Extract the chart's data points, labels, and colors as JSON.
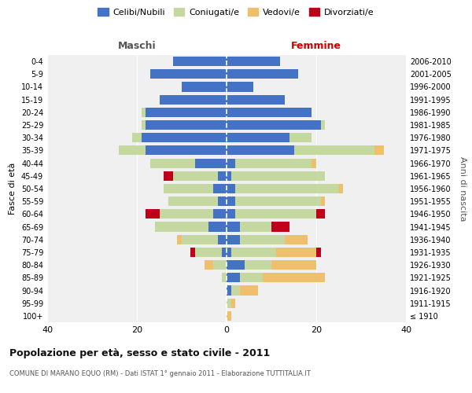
{
  "age_groups": [
    "100+",
    "95-99",
    "90-94",
    "85-89",
    "80-84",
    "75-79",
    "70-74",
    "65-69",
    "60-64",
    "55-59",
    "50-54",
    "45-49",
    "40-44",
    "35-39",
    "30-34",
    "25-29",
    "20-24",
    "15-19",
    "10-14",
    "5-9",
    "0-4"
  ],
  "birth_years": [
    "≤ 1910",
    "1911-1915",
    "1916-1920",
    "1921-1925",
    "1926-1930",
    "1931-1935",
    "1936-1940",
    "1941-1945",
    "1946-1950",
    "1951-1955",
    "1956-1960",
    "1961-1965",
    "1966-1970",
    "1971-1975",
    "1976-1980",
    "1981-1985",
    "1986-1990",
    "1991-1995",
    "1996-2000",
    "2001-2005",
    "2006-2010"
  ],
  "colors": {
    "celibi": "#4472c4",
    "coniugati": "#c5d8a0",
    "vedovi": "#f0bf6c",
    "divorziati": "#c0001a"
  },
  "maschi": {
    "celibi": [
      0,
      0,
      0,
      0,
      0,
      1,
      2,
      4,
      3,
      2,
      3,
      2,
      7,
      18,
      19,
      18,
      18,
      15,
      10,
      17,
      12
    ],
    "coniugati": [
      0,
      0,
      0,
      1,
      3,
      6,
      8,
      12,
      12,
      11,
      11,
      10,
      10,
      6,
      2,
      1,
      1,
      0,
      0,
      0,
      0
    ],
    "vedovi": [
      0,
      0,
      0,
      0,
      2,
      0,
      1,
      0,
      0,
      0,
      0,
      0,
      0,
      0,
      0,
      0,
      0,
      0,
      0,
      0,
      0
    ],
    "divorziati": [
      0,
      0,
      0,
      0,
      0,
      1,
      0,
      0,
      3,
      0,
      0,
      2,
      0,
      0,
      0,
      0,
      0,
      0,
      0,
      0,
      0
    ]
  },
  "femmine": {
    "celibi": [
      0,
      0,
      1,
      3,
      4,
      1,
      3,
      3,
      2,
      2,
      2,
      1,
      2,
      15,
      14,
      21,
      19,
      13,
      6,
      16,
      12
    ],
    "coniugati": [
      0,
      1,
      2,
      5,
      6,
      10,
      10,
      7,
      18,
      19,
      23,
      21,
      17,
      18,
      5,
      1,
      0,
      0,
      0,
      0,
      0
    ],
    "vedovi": [
      1,
      1,
      4,
      14,
      10,
      9,
      5,
      0,
      0,
      1,
      1,
      0,
      1,
      2,
      0,
      0,
      0,
      0,
      0,
      0,
      0
    ],
    "divorziati": [
      0,
      0,
      0,
      0,
      0,
      1,
      0,
      4,
      2,
      0,
      0,
      0,
      0,
      0,
      0,
      0,
      0,
      0,
      0,
      0,
      0
    ]
  },
  "xlim": 40,
  "title": "Popolazione per età, sesso e stato civile - 2011",
  "subtitle": "COMUNE DI MARANO EQUO (RM) - Dati ISTAT 1° gennaio 2011 - Elaborazione TUTTITALIA.IT",
  "ylabel_left": "Fasce di età",
  "ylabel_right": "Anni di nascita",
  "maschi_label": "Maschi",
  "femmine_label": "Femmine",
  "legend_labels": [
    "Celibi/Nubili",
    "Coniugati/e",
    "Vedovi/e",
    "Divorziati/e"
  ],
  "bg_color": "#f0f0f0",
  "bar_height": 0.75
}
